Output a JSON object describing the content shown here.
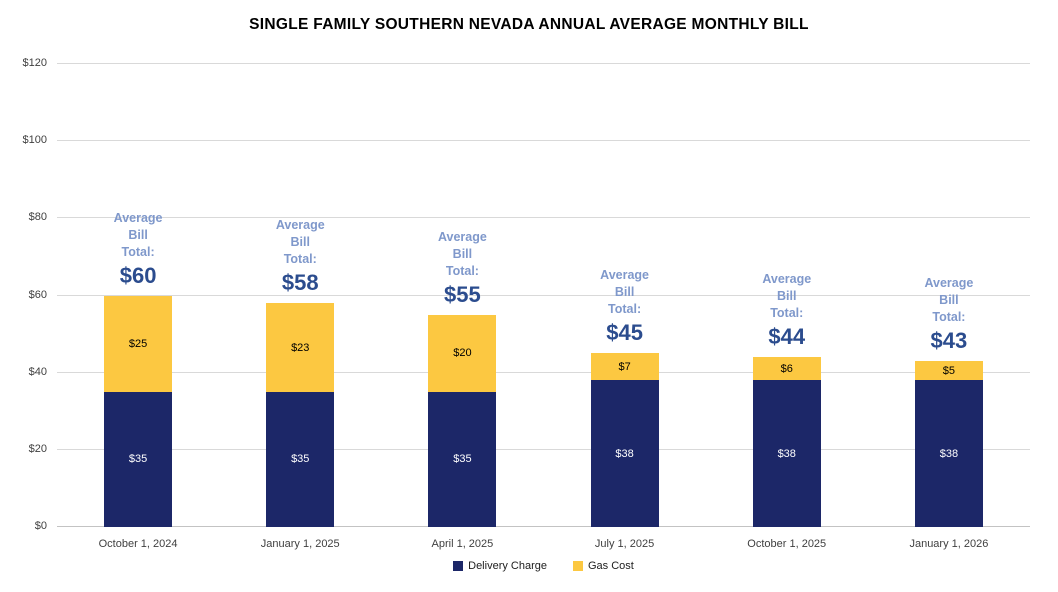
{
  "title": "SINGLE FAMILY SOUTHERN NEVADA ANNUAL AVERAGE MONTHLY BILL",
  "colors": {
    "delivery_charge": "#1C2768",
    "gas_cost": "#FCC841",
    "annotation_label": "#7F98CB",
    "annotation_total": "#2B4C8E",
    "gridline": "#D9D9D9",
    "axis_text": "#3F3F3F",
    "title_text": "#000000",
    "background": "#FFFFFF"
  },
  "chart_data": {
    "type": "bar",
    "stacked": true,
    "title": "SINGLE FAMILY SOUTHERN NEVADA ANNUAL AVERAGE MONTHLY BILL",
    "xlabel": "",
    "ylabel": "",
    "ylim": [
      0,
      120
    ],
    "grid": true,
    "categories": [
      "October 1, 2024",
      "January 1, 2025",
      "April 1, 2025",
      "July 1, 2025",
      "October 1, 2025",
      "January 1, 2026"
    ],
    "series": [
      {
        "name": "Delivery Charge",
        "color": "#1C2768",
        "label_color": "#FFFFFF",
        "values": [
          35,
          35,
          35,
          38,
          38,
          38
        ],
        "labels": [
          "$35",
          "$35",
          "$35",
          "$38",
          "$38",
          "$38"
        ]
      },
      {
        "name": "Gas Cost",
        "color": "#FCC841",
        "label_color": "#000000",
        "values": [
          25,
          23,
          20,
          7,
          6,
          5
        ],
        "labels": [
          "$25",
          "$23",
          "$20",
          "$7",
          "$6",
          "$5"
        ]
      }
    ],
    "totals": [
      60,
      58,
      55,
      45,
      44,
      43
    ],
    "total_labels": [
      "$60",
      "$58",
      "$55",
      "$45",
      "$44",
      "$43"
    ],
    "annotation_lines": [
      "Average",
      "Bill",
      "Total:"
    ],
    "y_ticks": [
      0,
      20,
      40,
      60,
      80,
      100,
      120
    ],
    "y_tick_labels": [
      "$0",
      "$20",
      "$40",
      "$60",
      "$80",
      "$100",
      "$120"
    ],
    "legend": {
      "position": "bottom",
      "entries": [
        "Delivery Charge",
        "Gas Cost"
      ]
    }
  }
}
